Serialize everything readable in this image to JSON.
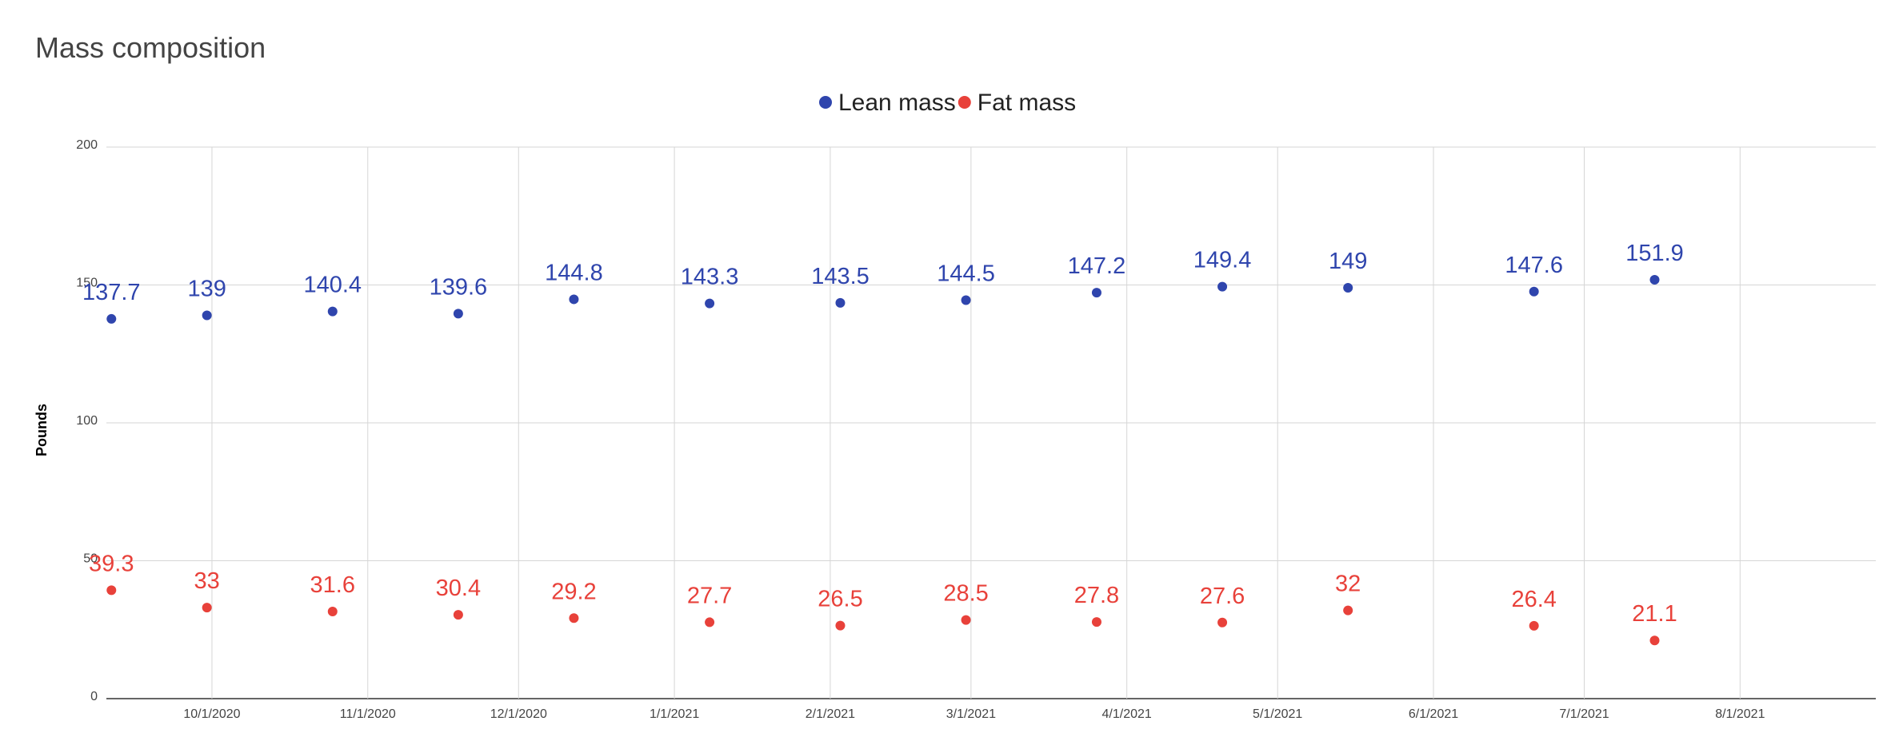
{
  "chart_data": {
    "type": "scatter",
    "title": "Mass composition",
    "ylabel": "Pounds",
    "xlabel": "",
    "ylim": [
      0,
      200
    ],
    "yticks": [
      0,
      50,
      100,
      150,
      200
    ],
    "xlim": [
      "2020-09-10",
      "2021-08-28"
    ],
    "xticks": [
      {
        "date": "2020-10-01",
        "label": "10/1/2020"
      },
      {
        "date": "2020-11-01",
        "label": "11/1/2020"
      },
      {
        "date": "2020-12-01",
        "label": "12/1/2020"
      },
      {
        "date": "2021-01-01",
        "label": "1/1/2021"
      },
      {
        "date": "2021-02-01",
        "label": "2/1/2021"
      },
      {
        "date": "2021-03-01",
        "label": "3/1/2021"
      },
      {
        "date": "2021-04-01",
        "label": "4/1/2021"
      },
      {
        "date": "2021-05-01",
        "label": "5/1/2021"
      },
      {
        "date": "2021-06-01",
        "label": "6/1/2021"
      },
      {
        "date": "2021-07-01",
        "label": "7/1/2021"
      },
      {
        "date": "2021-08-01",
        "label": "8/1/2021"
      }
    ],
    "grid": true,
    "legend_position": "top",
    "x": [
      "2020-09-11",
      "2020-09-30",
      "2020-10-25",
      "2020-11-19",
      "2020-12-12",
      "2021-01-08",
      "2021-02-03",
      "2021-02-28",
      "2021-03-26",
      "2021-04-20",
      "2021-05-15",
      "2021-06-21",
      "2021-07-15"
    ],
    "series": [
      {
        "name": "Lean mass",
        "color": "#2f45ad",
        "values": [
          137.7,
          139,
          140.4,
          139.6,
          144.8,
          143.3,
          143.5,
          144.5,
          147.2,
          149.4,
          149,
          147.6,
          151.9
        ]
      },
      {
        "name": "Fat mass",
        "color": "#e8413a",
        "values": [
          39.3,
          33,
          31.6,
          30.4,
          29.2,
          27.7,
          26.5,
          28.5,
          27.8,
          27.6,
          32,
          26.4,
          21.1
        ]
      }
    ]
  }
}
